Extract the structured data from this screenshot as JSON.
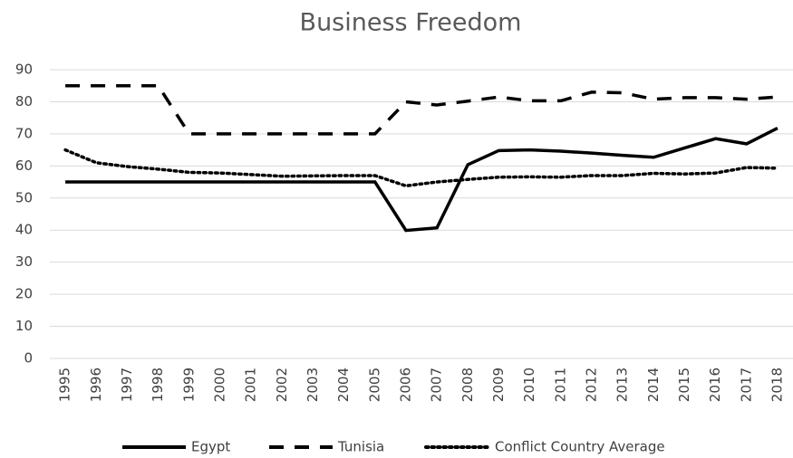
{
  "chart_data": {
    "type": "line",
    "title": "Business Freedom",
    "categories": [
      "1995",
      "1996",
      "1997",
      "1998",
      "1999",
      "2000",
      "2001",
      "2002",
      "2003",
      "2004",
      "2005",
      "2006",
      "2007",
      "2008",
      "2009",
      "2010",
      "2011",
      "2012",
      "2013",
      "2014",
      "2015",
      "2016",
      "2017",
      "2018"
    ],
    "series": [
      {
        "name": "Egypt",
        "color": "#000000",
        "style": "solid",
        "values": [
          55,
          55,
          55,
          55,
          55,
          55,
          55,
          55,
          55,
          55,
          55,
          39.9,
          40.7,
          60.4,
          64.8,
          65,
          64.6,
          64,
          63.3,
          62.7,
          65.6,
          68.5,
          66.9,
          71.8
        ]
      },
      {
        "name": "Tunisia",
        "color": "#000000",
        "style": "dashed",
        "values": [
          85,
          85,
          85,
          85,
          70,
          70,
          70,
          70,
          70,
          70,
          70,
          80,
          79,
          80.2,
          81.5,
          80.3,
          80.3,
          83,
          82.8,
          80.8,
          81.3,
          81.3,
          80.8,
          81.5
        ]
      },
      {
        "name": "Conflict Country Average",
        "color": "#000000",
        "style": "dotted",
        "values": [
          65,
          61,
          59.8,
          59,
          58,
          57.8,
          57.3,
          56.8,
          56.9,
          57,
          57,
          53.8,
          55,
          55.8,
          56.5,
          56.6,
          56.5,
          57,
          57,
          57.7,
          57.5,
          57.8,
          59.5,
          59.3
        ]
      }
    ],
    "ylim": [
      0,
      90
    ],
    "yticks": [
      0,
      10,
      20,
      30,
      40,
      50,
      60,
      70,
      80,
      90
    ],
    "grid": true,
    "legend": "bottom"
  }
}
